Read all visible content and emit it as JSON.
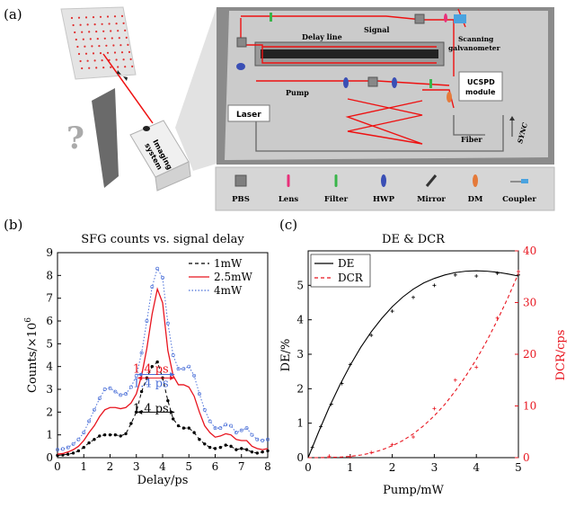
{
  "panel_labels": {
    "a": "(a)",
    "b": "(b)",
    "c": "(c)"
  },
  "setup": {
    "delay_line": "Delay line",
    "signal": "Signal",
    "scanning": "Scanning",
    "galvanometer": "galvanometer",
    "pump": "Pump",
    "laser": "Laser",
    "ucspd_1": "UCSPD",
    "ucspd_2": "module",
    "fiber": "Fiber",
    "sync": "SYNC",
    "imaging_1": "Imaging",
    "imaging_2": "system",
    "question": "?"
  },
  "legend_items": [
    {
      "label": "PBS",
      "icon": "pbs-icon",
      "color": "#7f7f7f"
    },
    {
      "label": "Lens",
      "icon": "lens-icon",
      "color": "#e8307a"
    },
    {
      "label": "Filter",
      "icon": "filter-icon",
      "color": "#39b54a"
    },
    {
      "label": "HWP",
      "icon": "hwp-icon",
      "color": "#3a4fb5"
    },
    {
      "label": "Mirror",
      "icon": "mirror-icon",
      "color": "#333333"
    },
    {
      "label": "DM",
      "icon": "dm-icon",
      "color": "#e57a3a"
    },
    {
      "label": "Coupler",
      "icon": "coupler-icon",
      "color": "#4aa3df"
    }
  ],
  "chart_data": [
    {
      "type": "line",
      "title": "SFG counts vs. signal delay",
      "xlabel": "Delay/ps",
      "ylabel": "Counts/×10",
      "ylabel_exp": "6",
      "xlim": [
        0,
        8
      ],
      "ylim": [
        0,
        9
      ],
      "xticks": [
        "0",
        "1",
        "2",
        "3",
        "4",
        "5",
        "6",
        "7",
        "8"
      ],
      "yticks": [
        "0",
        "1",
        "2",
        "3",
        "4",
        "5",
        "6",
        "7",
        "8",
        "9"
      ],
      "x": [
        0,
        0.2,
        0.4,
        0.6,
        0.8,
        1.0,
        1.2,
        1.4,
        1.6,
        1.8,
        2.0,
        2.2,
        2.4,
        2.6,
        2.8,
        3.0,
        3.2,
        3.4,
        3.6,
        3.8,
        4.0,
        4.2,
        4.4,
        4.6,
        4.8,
        5.0,
        5.2,
        5.4,
        5.6,
        5.8,
        6.0,
        6.2,
        6.4,
        6.6,
        6.8,
        7.0,
        7.2,
        7.4,
        7.6,
        7.8,
        8.0
      ],
      "series": [
        {
          "name": "1mW",
          "color": "#000000",
          "style": "dashed-dots",
          "values": [
            0.1,
            0.12,
            0.15,
            0.2,
            0.3,
            0.45,
            0.65,
            0.8,
            0.95,
            1.0,
            1.0,
            1.0,
            0.95,
            1.05,
            1.5,
            2.0,
            2.9,
            3.5,
            4.0,
            4.2,
            3.5,
            2.5,
            1.7,
            1.4,
            1.3,
            1.3,
            1.1,
            0.8,
            0.6,
            0.45,
            0.4,
            0.45,
            0.55,
            0.5,
            0.35,
            0.4,
            0.35,
            0.25,
            0.2,
            0.25,
            0.3
          ]
        },
        {
          "name": "2.5mW",
          "color": "#e8141e",
          "style": "solid",
          "values": [
            0.15,
            0.18,
            0.25,
            0.35,
            0.5,
            0.75,
            1.1,
            1.4,
            1.8,
            2.1,
            2.2,
            2.2,
            2.15,
            2.2,
            2.4,
            2.8,
            3.6,
            4.8,
            6.3,
            7.4,
            6.8,
            4.7,
            3.6,
            3.2,
            3.2,
            3.1,
            2.7,
            2.0,
            1.4,
            1.1,
            0.9,
            0.95,
            1.05,
            1.0,
            0.8,
            0.75,
            0.75,
            0.5,
            0.4,
            0.35,
            0.4
          ]
        },
        {
          "name": "4mW",
          "color": "#4a6fd8",
          "style": "dotted-circles",
          "values": [
            0.35,
            0.38,
            0.45,
            0.6,
            0.8,
            1.1,
            1.6,
            2.1,
            2.6,
            3.0,
            3.05,
            2.9,
            2.75,
            2.8,
            3.1,
            3.6,
            4.6,
            6.0,
            7.5,
            8.3,
            7.9,
            5.9,
            4.5,
            3.9,
            3.9,
            4.0,
            3.6,
            2.8,
            2.1,
            1.6,
            1.3,
            1.3,
            1.45,
            1.4,
            1.1,
            1.2,
            1.3,
            1.0,
            0.8,
            0.75,
            0.8
          ]
        }
      ],
      "annotations": [
        {
          "text": "1.4 ps",
          "color": "#4a6fd8",
          "x1": 3.05,
          "x2": 4.45,
          "y": 3.65
        },
        {
          "text": "1.4 ps",
          "color": "#e8141e",
          "x1": 3.05,
          "x2": 4.45,
          "y": 3.5
        },
        {
          "text": "1.4 ps",
          "color": "#000000",
          "x1": 3.05,
          "x2": 4.45,
          "y": 2.0
        }
      ],
      "legend_position": "top-right"
    },
    {
      "type": "line",
      "title": "DE & DCR",
      "xlabel": "Pump/mW",
      "ylabel_left": "DE/%",
      "ylabel_right": "DCR/cps",
      "xlim": [
        0,
        5
      ],
      "ylim_left": [
        0,
        6
      ],
      "ylim_right": [
        0,
        40
      ],
      "xticks": [
        "0",
        "1",
        "2",
        "3",
        "4",
        "5"
      ],
      "yticks_left": [
        "0",
        "1",
        "2",
        "3",
        "4",
        "5"
      ],
      "yticks_right": [
        "0",
        "10",
        "20",
        "30",
        "40"
      ],
      "series": [
        {
          "name": "DE",
          "color": "#000000",
          "style": "solid",
          "axis": "left",
          "fit_x": [
            0,
            0.25,
            0.5,
            0.75,
            1.0,
            1.25,
            1.5,
            1.75,
            2.0,
            2.25,
            2.5,
            2.75,
            3.0,
            3.25,
            3.5,
            3.75,
            4.0,
            4.25,
            4.5,
            4.75,
            5.0
          ],
          "fit_y": [
            0,
            0.75,
            1.46,
            2.1,
            2.68,
            3.2,
            3.65,
            4.04,
            4.38,
            4.66,
            4.89,
            5.07,
            5.2,
            5.3,
            5.37,
            5.41,
            5.42,
            5.41,
            5.38,
            5.33,
            5.27
          ],
          "points_x": [
            0.1,
            0.3,
            0.55,
            0.8,
            1.0,
            1.5,
            2.0,
            2.5,
            3.0,
            3.5,
            4.0,
            4.5,
            5.0
          ],
          "points_y": [
            0.3,
            0.9,
            1.55,
            2.15,
            2.7,
            3.55,
            4.25,
            4.65,
            5.0,
            5.3,
            5.27,
            5.35,
            5.3
          ]
        },
        {
          "name": "DCR",
          "color": "#e8141e",
          "style": "dashed",
          "axis": "right",
          "fit_x": [
            0,
            0.25,
            0.5,
            0.75,
            1.0,
            1.25,
            1.5,
            1.75,
            2.0,
            2.25,
            2.5,
            2.75,
            3.0,
            3.25,
            3.5,
            3.75,
            4.0,
            4.25,
            4.5,
            4.75,
            5.0
          ],
          "fit_y": [
            0,
            0.0,
            0.05,
            0.1,
            0.25,
            0.5,
            0.9,
            1.5,
            2.3,
            3.3,
            4.6,
            6.2,
            8.1,
            10.3,
            12.9,
            15.8,
            19.0,
            22.6,
            26.6,
            30.9,
            35.6
          ],
          "points_x": [
            0.5,
            1.0,
            1.5,
            2.0,
            2.5,
            3.0,
            3.5,
            4.0,
            4.5,
            5.0
          ],
          "points_y": [
            0.3,
            0.2,
            1.0,
            2.5,
            4.0,
            9.5,
            15.0,
            17.5,
            27.0,
            36.0
          ]
        }
      ],
      "legend_position": "top-left"
    }
  ]
}
